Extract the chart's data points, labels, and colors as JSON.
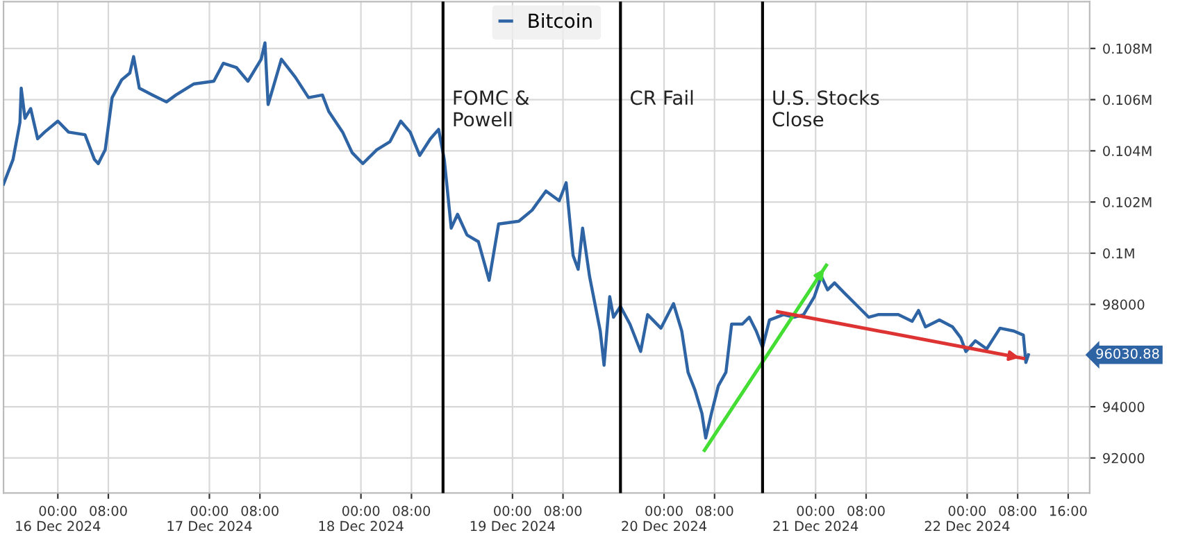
{
  "chart_data": {
    "type": "line",
    "x": [
      "2024-12-15T15:24",
      "2024-12-15T16:54",
      "2024-12-15T18:00",
      "2024-12-15T18:12",
      "2024-12-15T18:48",
      "2024-12-15T19:42",
      "2024-12-15T20:48",
      "2024-12-15T21:54",
      "2024-12-16T00:00",
      "2024-12-16T01:42",
      "2024-12-16T04:18",
      "2024-12-16T05:48",
      "2024-12-16T06:24",
      "2024-12-16T07:30",
      "2024-12-16T08:36",
      "2024-12-16T10:06",
      "2024-12-16T11:24",
      "2024-12-16T12:00",
      "2024-12-16T12:54",
      "2024-12-16T15:00",
      "2024-12-16T17:12",
      "2024-12-16T18:42",
      "2024-12-16T21:30",
      "2024-12-17T00:42",
      "2024-12-17T02:12",
      "2024-12-17T04:18",
      "2024-12-17T06:06",
      "2024-12-17T08:12",
      "2024-12-17T08:48",
      "2024-12-17T09:18",
      "2024-12-17T11:24",
      "2024-12-17T13:36",
      "2024-12-17T15:42",
      "2024-12-17T17:54",
      "2024-12-17T18:54",
      "2024-12-17T21:06",
      "2024-12-17T22:36",
      "2024-12-18T00:18",
      "2024-12-18T02:30",
      "2024-12-18T04:36",
      "2024-12-18T06:18",
      "2024-12-18T07:48",
      "2024-12-18T09:18",
      "2024-12-18T11:00",
      "2024-12-18T12:18",
      "2024-12-18T13:12",
      "2024-12-18T14:18",
      "2024-12-18T15:18",
      "2024-12-18T16:48",
      "2024-12-18T18:36",
      "2024-12-18T20:18",
      "2024-12-18T21:48",
      "2024-12-19T01:00",
      "2024-12-19T03:06",
      "2024-12-19T05:18",
      "2024-12-19T07:24",
      "2024-12-19T08:30",
      "2024-12-19T09:36",
      "2024-12-19T10:24",
      "2024-12-19T11:06",
      "2024-12-19T12:12",
      "2024-12-19T13:54",
      "2024-12-19T14:30",
      "2024-12-19T15:24",
      "2024-12-19T16:00",
      "2024-12-19T17:06",
      "2024-12-19T18:36",
      "2024-12-19T20:18",
      "2024-12-19T21:24",
      "2024-12-19T23:30",
      "2024-12-20T01:30",
      "2024-12-20T02:48",
      "2024-12-20T03:48",
      "2024-12-20T04:54",
      "2024-12-20T06:00",
      "2024-12-20T06:36",
      "2024-12-20T07:30",
      "2024-12-20T08:36",
      "2024-12-20T09:48",
      "2024-12-20T10:42",
      "2024-12-20T12:24",
      "2024-12-20T13:30",
      "2024-12-20T14:36",
      "2024-12-20T15:36",
      "2024-12-20T16:42",
      "2024-12-20T18:54",
      "2024-12-20T20:36",
      "2024-12-20T22:06",
      "2024-12-20T23:48",
      "2024-12-21T00:54",
      "2024-12-21T01:54",
      "2024-12-21T03:00",
      "2024-12-21T04:30",
      "2024-12-21T06:42",
      "2024-12-21T08:24",
      "2024-12-21T09:54",
      "2024-12-21T13:06",
      "2024-12-21T15:18",
      "2024-12-21T16:18",
      "2024-12-21T17:24",
      "2024-12-21T19:36",
      "2024-12-21T21:42",
      "2024-12-21T23:00",
      "2024-12-21T23:48",
      "2024-12-22T01:18",
      "2024-12-22T03:06",
      "2024-12-22T05:12",
      "2024-12-22T07:24",
      "2024-12-22T08:54",
      "2024-12-22T09:18",
      "2024-12-22T09:42"
    ],
    "series": [
      {
        "name": "Bitcoin",
        "color": "#2e64a4",
        "values": [
          102700,
          103660,
          105110,
          106450,
          105270,
          105650,
          104470,
          104730,
          105160,
          104730,
          104630,
          103660,
          103500,
          104040,
          106080,
          106770,
          107040,
          107680,
          106450,
          106180,
          105910,
          106180,
          106610,
          106720,
          107420,
          107250,
          106720,
          107580,
          108220,
          105810,
          107580,
          106880,
          106080,
          106180,
          105540,
          104730,
          103930,
          103500,
          104040,
          104360,
          105160,
          104730,
          103820,
          104470,
          104840,
          103660,
          100980,
          101520,
          100710,
          100450,
          98940,
          101140,
          101250,
          101680,
          102430,
          102050,
          102750,
          99910,
          99370,
          100980,
          99100,
          96960,
          95620,
          98300,
          97500,
          97920,
          97230,
          96160,
          97600,
          97070,
          98030,
          96960,
          95350,
          94650,
          93740,
          92780,
          93740,
          94820,
          95350,
          97230,
          97230,
          97500,
          96960,
          96320,
          97390,
          97600,
          97500,
          97600,
          98300,
          99100,
          98570,
          98840,
          98460,
          97920,
          97500,
          97600,
          97600,
          97340,
          97760,
          97120,
          97390,
          97120,
          96690,
          96160,
          96580,
          96260,
          97070,
          96960,
          96800,
          95730,
          96030
        ]
      },
      {
        "type": "line",
        "color": "#44dd33",
        "x": [
          "2024-12-20T06:24",
          "2024-12-21T01:42"
        ],
        "values": [
          92300,
          99530
        ]
      },
      {
        "type": "line",
        "color": "#dd3333",
        "x": [
          "2024-12-20T18:00",
          "2024-12-22T08:54"
        ],
        "values": [
          97710,
          95890
        ]
      }
    ],
    "xlim": [
      "2024-12-15T15:24",
      "2024-12-22T19:24"
    ],
    "xticks": [
      {
        "value": "2024-12-16T00:00",
        "label": "00:00\n16 Dec 2024"
      },
      {
        "value": "2024-12-16T08:00",
        "label": "08:00"
      },
      {
        "value": "2024-12-17T00:00",
        "label": "00:00\n17 Dec 2024"
      },
      {
        "value": "2024-12-17T08:00",
        "label": "08:00"
      },
      {
        "value": "2024-12-18T00:00",
        "label": "00:00\n18 Dec 2024"
      },
      {
        "value": "2024-12-18T08:00",
        "label": "08:00"
      },
      {
        "value": "2024-12-19T00:00",
        "label": "00:00\n19 Dec 2024"
      },
      {
        "value": "2024-12-19T08:00",
        "label": "08:00"
      },
      {
        "value": "2024-12-20T00:00",
        "label": "00:00\n20 Dec 2024"
      },
      {
        "value": "2024-12-20T08:00",
        "label": "08:00"
      },
      {
        "value": "2024-12-21T00:00",
        "label": "00:00\n21 Dec 2024"
      },
      {
        "value": "2024-12-21T08:00",
        "label": "08:00"
      },
      {
        "value": "2024-12-22T00:00",
        "label": "00:00\n22 Dec 2024"
      },
      {
        "value": "2024-12-22T08:00",
        "label": "08:00"
      },
      {
        "value": "2024-12-22T16:00",
        "label": "16:00"
      }
    ],
    "ylim": [
      90630,
      109830
    ],
    "yticks": [
      {
        "value": 92000,
        "label": "92000"
      },
      {
        "value": 94000,
        "label": "94000"
      },
      {
        "value": 96000,
        "label": null
      },
      {
        "value": 98000,
        "label": "98000"
      },
      {
        "value": 100000,
        "label": "0.1M"
      },
      {
        "value": 102000,
        "label": "0.102M"
      },
      {
        "value": 104000,
        "label": "0.104M"
      },
      {
        "value": 106000,
        "label": "0.106M"
      },
      {
        "value": 108000,
        "label": "0.108M"
      }
    ],
    "ref_lines": [
      {
        "axis": "x",
        "value": "2024-12-18T13:00",
        "label": "FOMC &\nPowell",
        "color": "#000000"
      },
      {
        "axis": "x",
        "value": "2024-12-19T17:06",
        "label": "CR Fail",
        "color": "#000000"
      },
      {
        "axis": "x",
        "value": "2024-12-20T15:36",
        "label": "U.S. Stocks\nClose",
        "color": "#000000"
      }
    ],
    "annotations": [
      "96030.88"
    ],
    "grid": true,
    "legend": "top",
    "marker": "none",
    "line_style": "solid"
  }
}
